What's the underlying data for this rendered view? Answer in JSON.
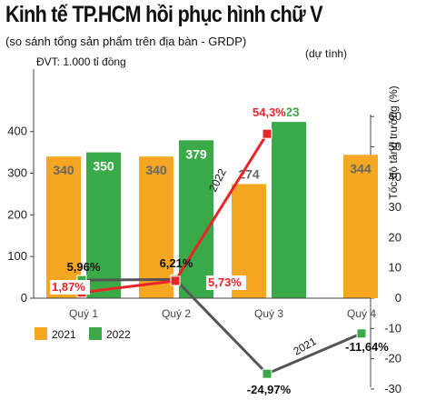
{
  "title": "Kinh tế TP.HCM hồi phục hình chữ V",
  "subtitle": "(so sánh tổng sản phẩm trên địa bàn - GRDP)",
  "chart_data": {
    "type": "bar",
    "unit_label": "ĐVT: 1.000 tỉ đồng",
    "categories": [
      "Quý 1",
      "Quý 2",
      "Quý 3",
      "Quý 4"
    ],
    "bar_series": [
      {
        "name": "2021",
        "color": "#f5a623",
        "values": [
          340,
          340,
          274,
          344
        ]
      },
      {
        "name": "2022",
        "color": "#3aaa49",
        "values": [
          350,
          379,
          423,
          null
        ]
      }
    ],
    "bar_value_labels": {
      "2021": [
        "340",
        "340",
        "274",
        "344"
      ],
      "2022": [
        "350",
        "379",
        "423",
        ""
      ]
    },
    "bar_note": "(dự tính)",
    "line_series": [
      {
        "name": "2021",
        "color": "#555555",
        "values": [
          5.96,
          6.21,
          -24.97,
          -11.64
        ],
        "labels": [
          "5,96%",
          "6,21%",
          "-24,97%",
          "-11,64%"
        ]
      },
      {
        "name": "2022",
        "color": "#e8262a",
        "values": [
          1.87,
          5.73,
          54.3,
          null
        ],
        "labels": [
          "1,87%",
          "5,73%",
          "54,3%",
          ""
        ]
      }
    ],
    "left_axis": {
      "ylim": [
        0,
        450
      ],
      "ticks": [
        "0",
        "100",
        "200",
        "300",
        "400"
      ]
    },
    "right_axis": {
      "title": "Tốc độ tăng trưởng (%)",
      "ylim": [
        -30,
        70
      ],
      "ticks": [
        "-30",
        "-20",
        "-10",
        "0",
        "10",
        "20",
        "30",
        "40",
        "50",
        "60"
      ]
    },
    "legend": {
      "items": [
        "2021",
        "2022"
      ],
      "placement": "bottom-left"
    },
    "grid": false
  }
}
